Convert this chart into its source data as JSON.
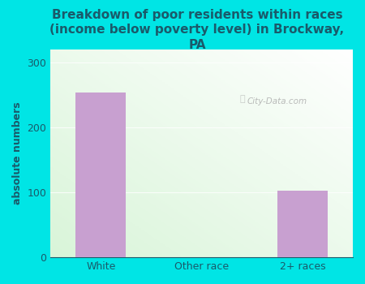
{
  "categories": [
    "White",
    "Other race",
    "2+ races"
  ],
  "values": [
    253,
    0,
    103
  ],
  "bar_color": "#c8a0d0",
  "title": "Breakdown of poor residents within races\n(income below poverty level) in Brockway,\nPA",
  "ylabel": "absolute numbers",
  "ylim": [
    0,
    320
  ],
  "yticks": [
    0,
    100,
    200,
    300
  ],
  "background_color": "#00e5e5",
  "title_color": "#1a5a6a",
  "axis_label_color": "#1a5a6a",
  "tick_color": "#1a5a6a",
  "watermark": "City-Data.com",
  "title_fontsize": 11,
  "ylabel_fontsize": 9
}
